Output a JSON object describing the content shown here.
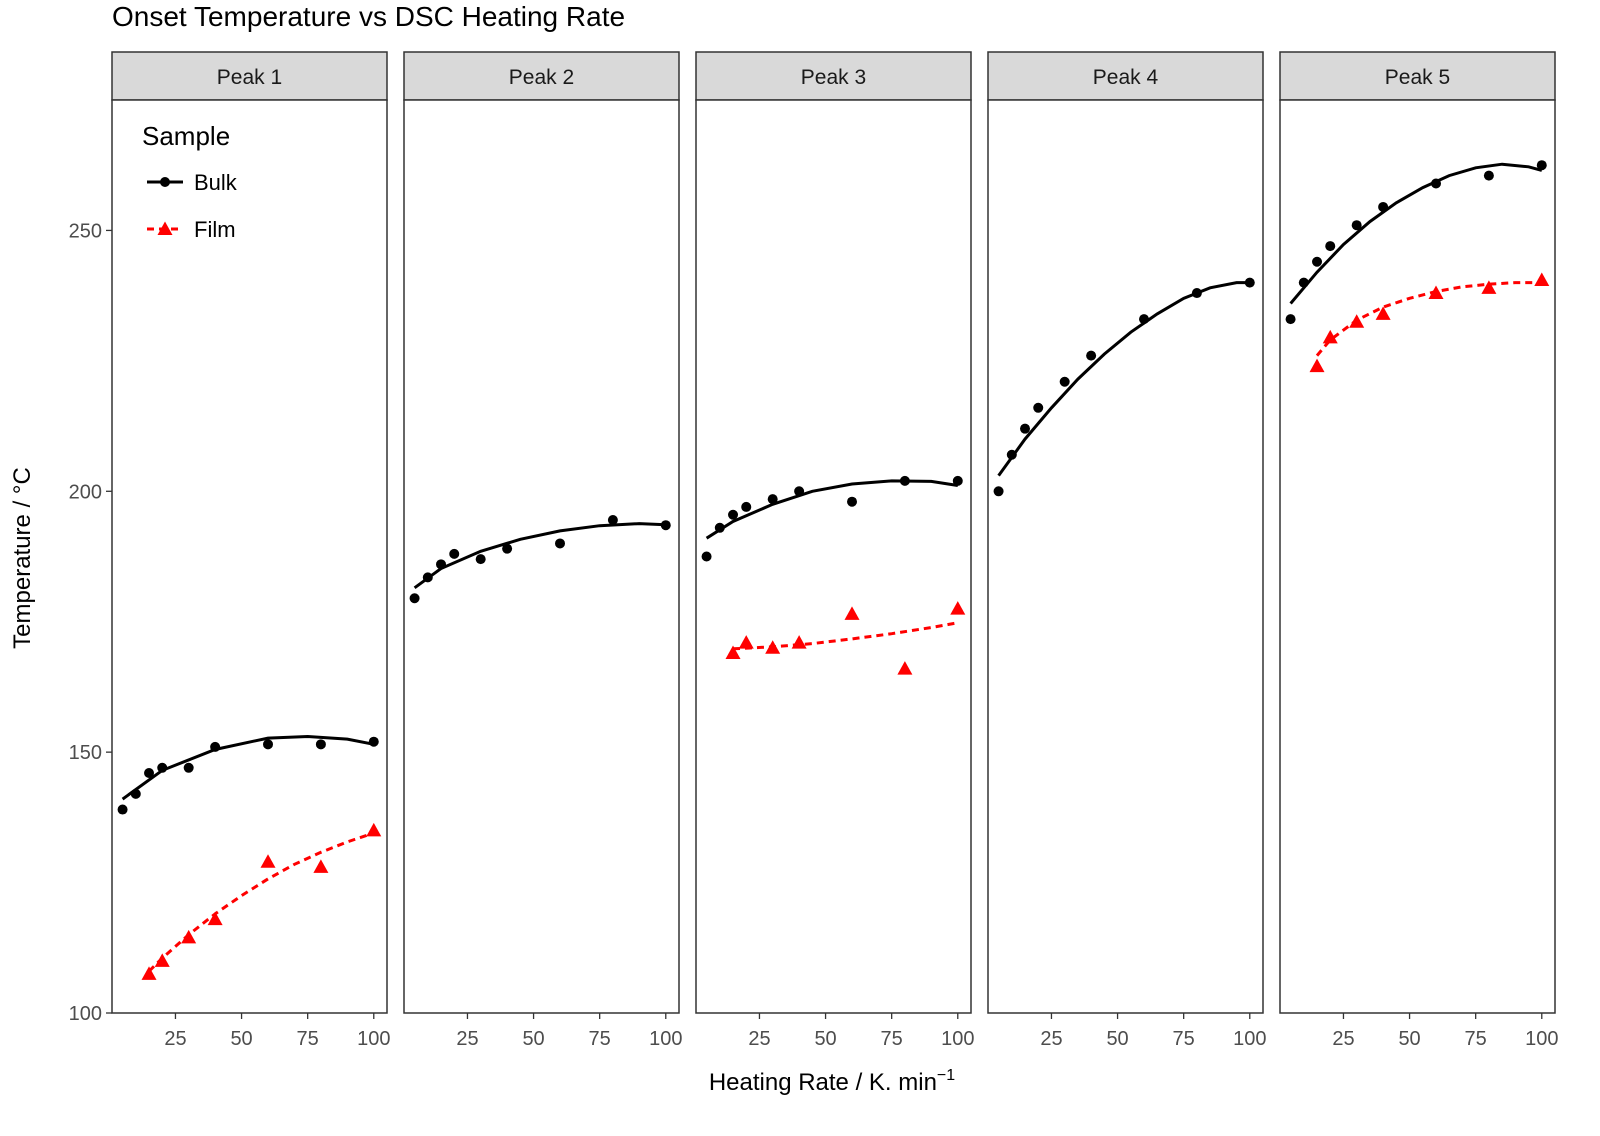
{
  "chart_data": {
    "type": "scatter",
    "title": "Onset Temperature vs DSC Heating Rate",
    "xlabel": "Heating Rate / K. min",
    "xlabel_superscript": "−1",
    "ylabel": "Temperature / °C",
    "ylim": [
      100,
      275
    ],
    "xlim": [
      1,
      105
    ],
    "yticks": [
      100,
      150,
      200,
      250
    ],
    "xticks": [
      25,
      50,
      75,
      100
    ],
    "grid": false,
    "legend": {
      "title": "Sample",
      "position": "top-left",
      "entries": [
        {
          "label": "Bulk",
          "color": "#000000",
          "marker": "circle",
          "line": "solid"
        },
        {
          "label": "Film",
          "color": "#ff0000",
          "marker": "triangle",
          "line": "dashed"
        }
      ]
    },
    "panels": [
      {
        "label": "Peak 1",
        "series": [
          {
            "name": "Bulk",
            "x": [
              5,
              10,
              15,
              20,
              30,
              40,
              60,
              80,
              100
            ],
            "y": [
              139,
              142,
              146,
              147,
              147,
              151,
              151.5,
              151.5,
              152
            ],
            "fit": {
              "x": [
                5,
                20,
                40,
                60,
                75,
                90,
                100
              ],
              "y": [
                141,
                146.5,
                150.5,
                152.7,
                153,
                152.5,
                151.5
              ]
            }
          },
          {
            "name": "Film",
            "x": [
              15,
              20,
              30,
              40,
              60,
              80,
              100
            ],
            "y": [
              107.5,
              110,
              114.5,
              118,
              129,
              128,
              135
            ],
            "fit": {
              "x": [
                15,
                20,
                30,
                40,
                50,
                60,
                70,
                80,
                90,
                100
              ],
              "y": [
                108,
                110.5,
                115,
                119,
                122.5,
                125.7,
                128.5,
                130.8,
                132.8,
                134.5
              ]
            }
          }
        ]
      },
      {
        "label": "Peak 2",
        "series": [
          {
            "name": "Bulk",
            "x": [
              5,
              10,
              15,
              20,
              30,
              40,
              60,
              80,
              100
            ],
            "y": [
              179.5,
              183.5,
              186,
              188,
              187,
              189,
              190,
              194.5,
              193.5
            ],
            "fit": {
              "x": [
                5,
                15,
                30,
                45,
                60,
                75,
                90,
                100
              ],
              "y": [
                181.5,
                185.2,
                188.5,
                190.8,
                192.4,
                193.4,
                193.8,
                193.6
              ]
            }
          }
        ]
      },
      {
        "label": "Peak 3",
        "series": [
          {
            "name": "Bulk",
            "x": [
              5,
              10,
              15,
              20,
              30,
              40,
              60,
              80,
              100
            ],
            "y": [
              187.5,
              193,
              195.5,
              197,
              198.5,
              200,
              198,
              202,
              202
            ],
            "fit": {
              "x": [
                5,
                15,
                30,
                45,
                60,
                75,
                90,
                100
              ],
              "y": [
                191,
                194.2,
                197.5,
                200,
                201.4,
                202,
                201.9,
                201.1
              ]
            }
          },
          {
            "name": "Film",
            "x": [
              15,
              20,
              30,
              40,
              60,
              80,
              100
            ],
            "y": [
              169,
              171,
              170,
              171,
              176.5,
              166,
              177.5
            ],
            "fit": {
              "x": [
                15,
                30,
                45,
                60,
                75,
                90,
                100
              ],
              "y": [
                169.8,
                170.2,
                170.8,
                171.7,
                172.7,
                173.9,
                174.8
              ]
            }
          }
        ]
      },
      {
        "label": "Peak 4",
        "series": [
          {
            "name": "Bulk",
            "x": [
              5,
              10,
              15,
              20,
              30,
              40,
              60,
              80,
              100
            ],
            "y": [
              200,
              207,
              212,
              216,
              221,
              226,
              233,
              238,
              240
            ],
            "fit": {
              "x": [
                5,
                15,
                25,
                35,
                45,
                55,
                65,
                75,
                85,
                95,
                100
              ],
              "y": [
                203,
                210,
                216,
                221.5,
                226.3,
                230.5,
                234,
                237,
                239,
                240,
                240
              ]
            }
          }
        ]
      },
      {
        "label": "Peak 5",
        "series": [
          {
            "name": "Bulk",
            "x": [
              5,
              10,
              15,
              20,
              30,
              40,
              60,
              80,
              100
            ],
            "y": [
              233,
              240,
              244,
              247,
              251,
              254.5,
              259,
              260.5,
              262.5
            ],
            "fit": {
              "x": [
                5,
                15,
                25,
                35,
                45,
                55,
                65,
                75,
                85,
                95,
                100
              ],
              "y": [
                236,
                242,
                247.3,
                251.7,
                255.3,
                258.2,
                260.5,
                262,
                262.7,
                262.2,
                261.5
              ]
            }
          },
          {
            "name": "Film",
            "x": [
              15,
              20,
              30,
              40,
              60,
              80,
              100
            ],
            "y": [
              224,
              229.5,
              232.5,
              234,
              238,
              239,
              240.5
            ],
            "fit": {
              "x": [
                15,
                20,
                30,
                40,
                50,
                60,
                70,
                80,
                90,
                100
              ],
              "y": [
                226,
                229,
                232.8,
                235.3,
                237,
                238.3,
                239.2,
                239.7,
                240,
                240
              ]
            }
          }
        ]
      }
    ]
  }
}
